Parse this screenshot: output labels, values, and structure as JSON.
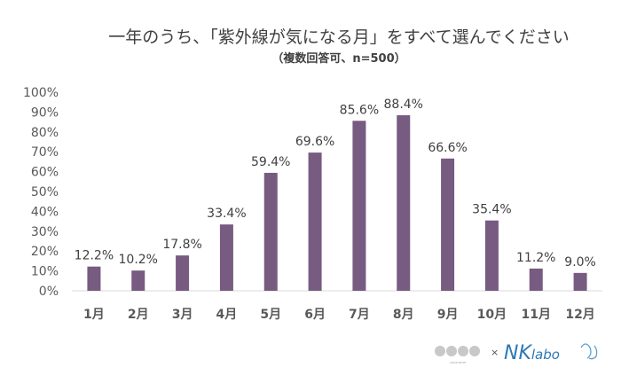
{
  "chart_data": {
    "type": "bar",
    "title": "一年のうち、「紫外線が気になる月」をすべて選んでください",
    "subtitle": "（複数回答可、n=500）",
    "xlabel": "",
    "ylabel": "",
    "categories": [
      "1月",
      "2月",
      "3月",
      "4月",
      "5月",
      "6月",
      "7月",
      "8月",
      "9月",
      "10月",
      "11月",
      "12月"
    ],
    "values": [
      12.2,
      10.2,
      17.8,
      33.4,
      59.4,
      69.6,
      85.6,
      88.4,
      66.6,
      35.4,
      11.2,
      9.0
    ],
    "data_labels": [
      "12.2%",
      "10.2%",
      "17.8%",
      "33.4%",
      "59.4%",
      "69.6%",
      "85.6%",
      "88.4%",
      "66.6%",
      "35.4%",
      "11.2%",
      "9.0%"
    ],
    "ylim": [
      0,
      100
    ],
    "yticks": [
      "0%",
      "10%",
      "20%",
      "30%",
      "40%",
      "50%",
      "60%",
      "70%",
      "80%",
      "90%",
      "100%"
    ],
    "grid": false,
    "legend": "none",
    "bar_color": "#775b80"
  },
  "logos": {
    "left": "VOICE NOTE",
    "separator": "×",
    "right": "NKlabo"
  }
}
